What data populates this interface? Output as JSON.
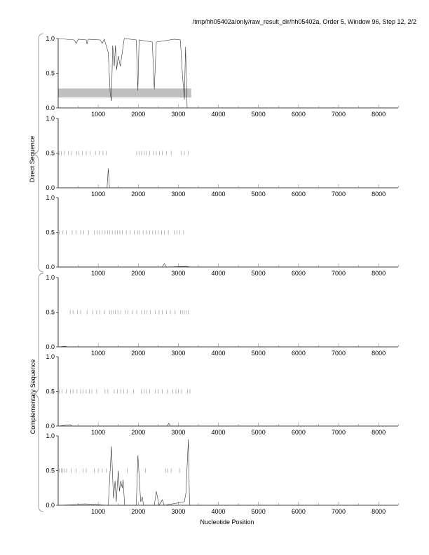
{
  "header": {
    "title": "/tmp/hh05402a/only/raw_result_dir/hh05402a, Order 5, Window 96, Step 12, 2/2"
  },
  "group_labels": {
    "direct": "Direct Sequence",
    "complementary": "Complementary Sequence"
  },
  "chart_data": {
    "type": "line",
    "xlabel": "Nucleotide Position",
    "xlim": [
      0,
      8500
    ],
    "ylim": [
      0,
      1
    ],
    "xticks": [
      "1000",
      "2000",
      "3000",
      "4000",
      "5000",
      "6000",
      "7000",
      "8000"
    ],
    "yticks": [
      "0.0",
      "0.5",
      "1.0"
    ],
    "panels": [
      {
        "name": "direct-frame-1",
        "series": [
          [
            0,
            1
          ],
          [
            400,
            0.98
          ],
          [
            450,
            0.93
          ],
          [
            500,
            0.99
          ],
          [
            700,
            0.98
          ],
          [
            720,
            0.92
          ],
          [
            750,
            0.99
          ],
          [
            1050,
            0.98
          ],
          [
            1100,
            0.93
          ],
          [
            1150,
            0.99
          ],
          [
            1250,
            0.8
          ],
          [
            1300,
            0.2
          ],
          [
            1330,
            0.1
          ],
          [
            1360,
            0.9
          ],
          [
            1400,
            0.6
          ],
          [
            1430,
            0.9
          ],
          [
            1460,
            0.55
          ],
          [
            1500,
            0.75
          ],
          [
            1550,
            0.6
          ],
          [
            1600,
            0.8
          ],
          [
            1650,
            1.0
          ],
          [
            1950,
            0.98
          ],
          [
            1990,
            0.25
          ],
          [
            2020,
            0.98
          ],
          [
            2350,
            0.95
          ],
          [
            2400,
            0.27
          ],
          [
            2450,
            0.95
          ],
          [
            2900,
            0.99
          ],
          [
            3050,
            0.98
          ],
          [
            3100,
            0.5
          ],
          [
            3150,
            0.12
          ],
          [
            3180,
            0.88
          ],
          [
            3220,
            0.0
          ]
        ],
        "marks": [],
        "highlight": [
          0,
          3320,
          0.15,
          0.28
        ]
      },
      {
        "name": "direct-frame-2",
        "series": [
          [
            0,
            0
          ],
          [
            1220,
            0
          ],
          [
            1250,
            0.28
          ],
          [
            1280,
            0
          ],
          [
            3300,
            0
          ]
        ],
        "marks": [
          20,
          80,
          150,
          250,
          330,
          460,
          520,
          600,
          700,
          800,
          930,
          1020,
          1120,
          1200,
          1960,
          2020,
          2080,
          2150,
          2200,
          2280,
          2380,
          2450,
          2530,
          2600,
          2700,
          2820,
          3070,
          3150,
          3250
        ],
        "highlight": null
      },
      {
        "name": "direct-frame-3",
        "series": [
          [
            0,
            0
          ],
          [
            2600,
            0
          ],
          [
            2650,
            0.05
          ],
          [
            2700,
            0
          ],
          [
            3200,
            0.01
          ],
          [
            3300,
            0
          ]
        ],
        "marks": [
          30,
          120,
          200,
          350,
          450,
          560,
          640,
          760,
          900,
          980,
          1030,
          1100,
          1170,
          1230,
          1290,
          1350,
          1420,
          1480,
          1540,
          1600,
          1700,
          1800,
          1900,
          1980,
          2030,
          2120,
          2200,
          2280,
          2360,
          2420,
          2500,
          2580,
          2650,
          2750,
          2900,
          2970,
          3040,
          3130
        ],
        "highlight": null
      },
      {
        "name": "complementary-frame-1",
        "series": [
          [
            0,
            0
          ],
          [
            180,
            0.01
          ],
          [
            220,
            0
          ],
          [
            3300,
            0
          ]
        ],
        "marks": [
          300,
          370,
          480,
          560,
          720,
          860,
          960,
          1040,
          1160,
          1280,
          1330,
          1380,
          1430,
          1490,
          1560,
          1680,
          1740,
          1860,
          1960,
          2080,
          2160,
          2220,
          2300,
          2420,
          2520,
          2600,
          2700,
          2800,
          2920,
          3050,
          3100,
          3150,
          3200,
          3250
        ],
        "highlight": null
      },
      {
        "name": "complementary-frame-2",
        "series": [
          [
            0,
            0
          ],
          [
            300,
            0.02
          ],
          [
            350,
            0
          ],
          [
            2720,
            0
          ],
          [
            2760,
            0.04
          ],
          [
            2800,
            0
          ],
          [
            3300,
            0
          ]
        ],
        "marks": [
          30,
          100,
          200,
          310,
          370,
          470,
          560,
          620,
          700,
          780,
          840,
          960,
          1170,
          1240,
          1400,
          1480,
          1560,
          1640,
          1720,
          1880,
          2070,
          2140,
          2200,
          2280,
          2420,
          2500,
          2600,
          2720,
          2860,
          2940,
          3000,
          3080,
          3230,
          3290
        ],
        "highlight": null
      },
      {
        "name": "complementary-frame-3",
        "series": [
          [
            0,
            0
          ],
          [
            450,
            0.01
          ],
          [
            650,
            0.02
          ],
          [
            1250,
            0
          ],
          [
            1330,
            0.85
          ],
          [
            1380,
            0.1
          ],
          [
            1420,
            0.35
          ],
          [
            1450,
            0.05
          ],
          [
            1500,
            0.5
          ],
          [
            1530,
            0.2
          ],
          [
            1560,
            0.35
          ],
          [
            1600,
            0.25
          ],
          [
            1620,
            0.37
          ],
          [
            1660,
            0
          ],
          [
            1950,
            0
          ],
          [
            1990,
            0.72
          ],
          [
            2060,
            0.05
          ],
          [
            2100,
            0.12
          ],
          [
            2130,
            0
          ],
          [
            2400,
            0
          ],
          [
            2450,
            0.2
          ],
          [
            2520,
            0
          ],
          [
            2600,
            0.08
          ],
          [
            2650,
            0
          ],
          [
            3150,
            0.05
          ],
          [
            3190,
            0.18
          ],
          [
            3230,
            0.7
          ],
          [
            3250,
            0.95
          ],
          [
            3280,
            0
          ],
          [
            3300,
            0
          ]
        ],
        "marks": [
          30,
          80,
          120,
          160,
          210,
          320,
          450,
          620,
          700,
          900,
          1000,
          1100,
          1200,
          1720,
          1980,
          2180,
          2680,
          2730,
          2820,
          3030
        ],
        "highlight": null
      }
    ]
  }
}
